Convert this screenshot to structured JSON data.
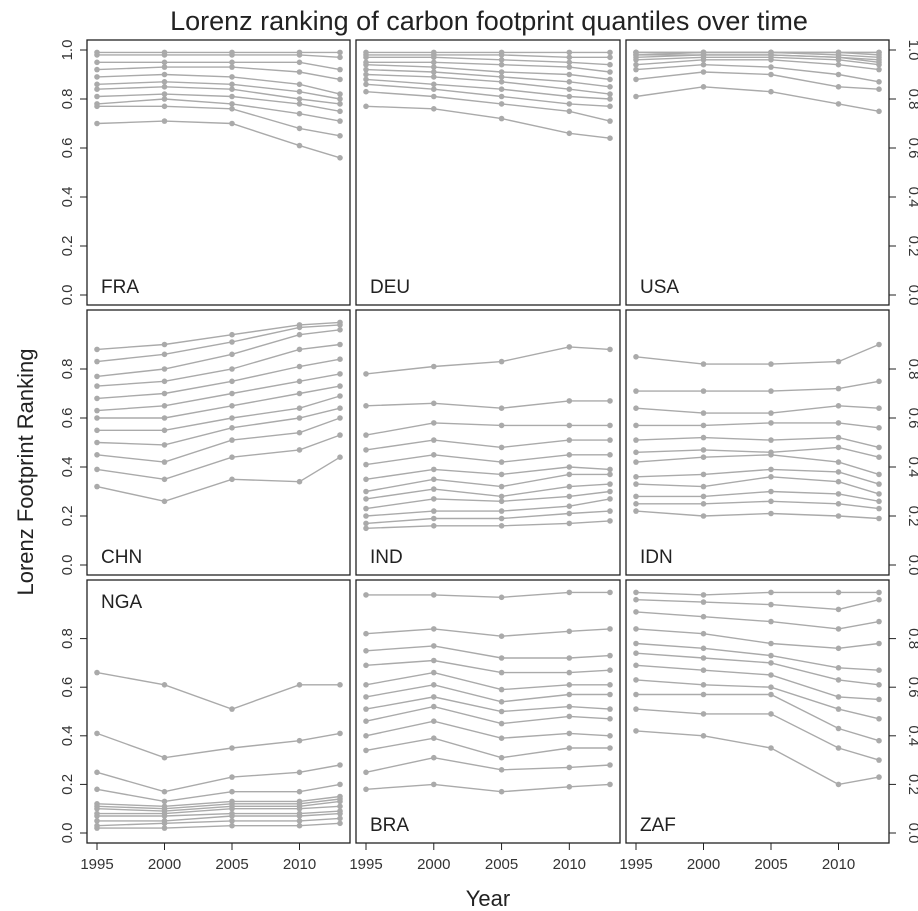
{
  "chart_data": {
    "type": "line",
    "title": "Lorenz ranking of carbon footprint quantiles over time",
    "xlabel": "Year",
    "ylabel": "Lorenz Footprint Ranking",
    "x": [
      1995,
      2000,
      2005,
      2010,
      2013
    ],
    "x_ticks": [
      "1995",
      "2000",
      "2005",
      "2010"
    ],
    "ylim": [
      0,
      1
    ],
    "y_ticks_row1": [
      "0.0",
      "0.2",
      "0.4",
      "0.6",
      "0.8",
      "1.0"
    ],
    "y_ticks_other": [
      "0.0",
      "0.2",
      "0.4",
      "0.6",
      "0.8"
    ],
    "grid": false,
    "panels": [
      {
        "label": "FRA",
        "series": [
          [
            0.99,
            0.99,
            0.99,
            0.99,
            0.99
          ],
          [
            0.98,
            0.98,
            0.98,
            0.98,
            0.97
          ],
          [
            0.95,
            0.95,
            0.95,
            0.95,
            0.92
          ],
          [
            0.92,
            0.93,
            0.93,
            0.91,
            0.88
          ],
          [
            0.89,
            0.9,
            0.89,
            0.86,
            0.82
          ],
          [
            0.86,
            0.87,
            0.86,
            0.83,
            0.8
          ],
          [
            0.84,
            0.85,
            0.84,
            0.8,
            0.78
          ],
          [
            0.81,
            0.82,
            0.81,
            0.78,
            0.75
          ],
          [
            0.78,
            0.8,
            0.78,
            0.74,
            0.71
          ],
          [
            0.77,
            0.77,
            0.76,
            0.68,
            0.65
          ],
          [
            0.7,
            0.71,
            0.7,
            0.61,
            0.56
          ]
        ]
      },
      {
        "label": "DEU",
        "series": [
          [
            0.99,
            0.99,
            0.99,
            0.99,
            0.99
          ],
          [
            0.98,
            0.98,
            0.98,
            0.97,
            0.97
          ],
          [
            0.97,
            0.97,
            0.96,
            0.95,
            0.94
          ],
          [
            0.95,
            0.95,
            0.94,
            0.93,
            0.91
          ],
          [
            0.94,
            0.93,
            0.91,
            0.9,
            0.88
          ],
          [
            0.92,
            0.91,
            0.89,
            0.87,
            0.85
          ],
          [
            0.9,
            0.89,
            0.87,
            0.84,
            0.82
          ],
          [
            0.88,
            0.86,
            0.84,
            0.81,
            0.8
          ],
          [
            0.86,
            0.84,
            0.81,
            0.78,
            0.77
          ],
          [
            0.83,
            0.81,
            0.78,
            0.75,
            0.71
          ],
          [
            0.77,
            0.76,
            0.72,
            0.66,
            0.64
          ]
        ]
      },
      {
        "label": "USA",
        "series": [
          [
            0.99,
            0.99,
            0.99,
            0.99,
            0.99
          ],
          [
            0.99,
            0.99,
            0.99,
            0.99,
            0.99
          ],
          [
            0.99,
            0.99,
            0.99,
            0.99,
            0.98
          ],
          [
            0.98,
            0.99,
            0.99,
            0.98,
            0.97
          ],
          [
            0.98,
            0.98,
            0.98,
            0.97,
            0.96
          ],
          [
            0.97,
            0.98,
            0.98,
            0.97,
            0.95
          ],
          [
            0.96,
            0.97,
            0.97,
            0.96,
            0.94
          ],
          [
            0.94,
            0.96,
            0.96,
            0.94,
            0.92
          ],
          [
            0.92,
            0.94,
            0.93,
            0.9,
            0.87
          ],
          [
            0.88,
            0.91,
            0.9,
            0.85,
            0.84
          ],
          [
            0.81,
            0.85,
            0.83,
            0.78,
            0.75
          ]
        ]
      },
      {
        "label": "CHN",
        "series": [
          [
            0.88,
            0.9,
            0.94,
            0.98,
            0.99
          ],
          [
            0.83,
            0.86,
            0.91,
            0.97,
            0.98
          ],
          [
            0.77,
            0.8,
            0.86,
            0.94,
            0.96
          ],
          [
            0.73,
            0.75,
            0.8,
            0.88,
            0.9
          ],
          [
            0.68,
            0.7,
            0.75,
            0.81,
            0.84
          ],
          [
            0.63,
            0.65,
            0.7,
            0.75,
            0.78
          ],
          [
            0.6,
            0.6,
            0.65,
            0.7,
            0.73
          ],
          [
            0.55,
            0.55,
            0.6,
            0.64,
            0.69
          ],
          [
            0.5,
            0.49,
            0.56,
            0.6,
            0.64
          ],
          [
            0.45,
            0.42,
            0.51,
            0.54,
            0.6
          ],
          [
            0.39,
            0.35,
            0.44,
            0.47,
            0.53
          ],
          [
            0.32,
            0.26,
            0.35,
            0.34,
            0.44
          ]
        ]
      },
      {
        "label": "IND",
        "series": [
          [
            0.78,
            0.81,
            0.83,
            0.89,
            0.88
          ],
          [
            0.65,
            0.66,
            0.64,
            0.67,
            0.67
          ],
          [
            0.53,
            0.58,
            0.57,
            0.57,
            0.57
          ],
          [
            0.47,
            0.51,
            0.48,
            0.51,
            0.51
          ],
          [
            0.41,
            0.45,
            0.42,
            0.45,
            0.45
          ],
          [
            0.35,
            0.39,
            0.37,
            0.4,
            0.39
          ],
          [
            0.3,
            0.35,
            0.32,
            0.37,
            0.37
          ],
          [
            0.27,
            0.31,
            0.28,
            0.32,
            0.33
          ],
          [
            0.23,
            0.27,
            0.26,
            0.28,
            0.3
          ],
          [
            0.2,
            0.22,
            0.22,
            0.24,
            0.27
          ],
          [
            0.17,
            0.19,
            0.19,
            0.21,
            0.22
          ],
          [
            0.15,
            0.16,
            0.16,
            0.17,
            0.18
          ]
        ]
      },
      {
        "label": "IDN",
        "series": [
          [
            0.85,
            0.82,
            0.82,
            0.83,
            0.9
          ],
          [
            0.71,
            0.71,
            0.71,
            0.72,
            0.75
          ],
          [
            0.64,
            0.62,
            0.62,
            0.65,
            0.64
          ],
          [
            0.57,
            0.57,
            0.58,
            0.58,
            0.56
          ],
          [
            0.51,
            0.52,
            0.51,
            0.52,
            0.48
          ],
          [
            0.46,
            0.47,
            0.46,
            0.48,
            0.44
          ],
          [
            0.42,
            0.44,
            0.45,
            0.42,
            0.37
          ],
          [
            0.36,
            0.37,
            0.39,
            0.38,
            0.33
          ],
          [
            0.33,
            0.32,
            0.36,
            0.34,
            0.29
          ],
          [
            0.28,
            0.28,
            0.3,
            0.29,
            0.26
          ],
          [
            0.25,
            0.25,
            0.26,
            0.25,
            0.23
          ],
          [
            0.22,
            0.2,
            0.21,
            0.2,
            0.19
          ]
        ]
      },
      {
        "label": "NGA",
        "series": [
          [
            0.66,
            0.61,
            0.51,
            0.61,
            0.61
          ],
          [
            0.41,
            0.31,
            0.35,
            0.38,
            0.41
          ],
          [
            0.25,
            0.17,
            0.23,
            0.25,
            0.28
          ],
          [
            0.18,
            0.13,
            0.17,
            0.17,
            0.2
          ],
          [
            0.12,
            0.11,
            0.13,
            0.13,
            0.15
          ],
          [
            0.11,
            0.1,
            0.12,
            0.12,
            0.14
          ],
          [
            0.1,
            0.09,
            0.11,
            0.11,
            0.13
          ],
          [
            0.08,
            0.08,
            0.1,
            0.1,
            0.11
          ],
          [
            0.07,
            0.07,
            0.08,
            0.08,
            0.09
          ],
          [
            0.05,
            0.05,
            0.07,
            0.07,
            0.08
          ],
          [
            0.03,
            0.04,
            0.05,
            0.05,
            0.06
          ],
          [
            0.02,
            0.02,
            0.03,
            0.03,
            0.04
          ]
        ]
      },
      {
        "label": "BRA",
        "series": [
          [
            0.98,
            0.98,
            0.97,
            0.99,
            0.99
          ],
          [
            0.82,
            0.84,
            0.81,
            0.83,
            0.84
          ],
          [
            0.75,
            0.77,
            0.72,
            0.72,
            0.73
          ],
          [
            0.69,
            0.71,
            0.66,
            0.66,
            0.67
          ],
          [
            0.61,
            0.66,
            0.59,
            0.61,
            0.61
          ],
          [
            0.56,
            0.61,
            0.54,
            0.57,
            0.57
          ],
          [
            0.51,
            0.56,
            0.5,
            0.52,
            0.51
          ],
          [
            0.46,
            0.52,
            0.45,
            0.48,
            0.47
          ],
          [
            0.4,
            0.46,
            0.39,
            0.41,
            0.4
          ],
          [
            0.34,
            0.39,
            0.31,
            0.35,
            0.35
          ],
          [
            0.25,
            0.31,
            0.26,
            0.27,
            0.28
          ],
          [
            0.18,
            0.2,
            0.17,
            0.19,
            0.2
          ]
        ]
      },
      {
        "label": "ZAF",
        "series": [
          [
            0.99,
            0.98,
            0.99,
            0.99,
            0.99
          ],
          [
            0.96,
            0.95,
            0.94,
            0.92,
            0.96
          ],
          [
            0.91,
            0.89,
            0.87,
            0.84,
            0.87
          ],
          [
            0.84,
            0.82,
            0.78,
            0.76,
            0.78
          ],
          [
            0.78,
            0.76,
            0.73,
            0.68,
            0.67
          ],
          [
            0.74,
            0.72,
            0.7,
            0.63,
            0.61
          ],
          [
            0.69,
            0.67,
            0.65,
            0.56,
            0.55
          ],
          [
            0.63,
            0.61,
            0.6,
            0.51,
            0.47
          ],
          [
            0.57,
            0.57,
            0.57,
            0.43,
            0.38
          ],
          [
            0.51,
            0.49,
            0.49,
            0.35,
            0.3
          ],
          [
            0.42,
            0.4,
            0.35,
            0.2,
            0.23
          ]
        ]
      }
    ]
  }
}
